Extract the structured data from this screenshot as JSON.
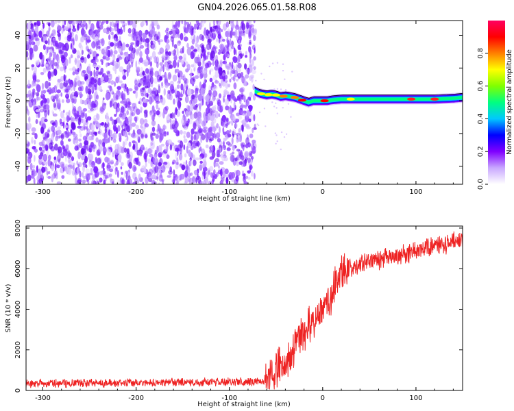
{
  "title": "GN04.2026.065.01.58.R08",
  "chart_data": [
    {
      "type": "heatmap",
      "name": "spectrogram",
      "xlabel": "Height of straight line (km)",
      "ylabel": "Frequency (Hz)",
      "xlim": [
        -318,
        150
      ],
      "ylim": [
        -51,
        49
      ],
      "xticks": [
        -300,
        -200,
        -100,
        0,
        100
      ],
      "yticks": [
        -40,
        -20,
        0,
        20,
        40
      ],
      "noise_region_x": [
        -318,
        -72
      ],
      "signal_start_x": -73,
      "signal_line_x": [
        -73,
        -68,
        -60,
        -55,
        -50,
        -45,
        -40,
        -35,
        -30,
        -25,
        -20,
        -15,
        -10,
        -5,
        0,
        5,
        10,
        20,
        40,
        60,
        80,
        100,
        120,
        140,
        150
      ],
      "signal_line_y": [
        6,
        4.5,
        3.5,
        4,
        3.5,
        2.5,
        3,
        2.5,
        2,
        1,
        0,
        -1,
        0,
        0,
        0,
        0,
        0.5,
        1,
        1,
        1,
        1,
        1,
        1,
        1.5,
        2
      ],
      "colorbar": {
        "label": "Normalized spectral amplitude",
        "range": [
          0,
          1
        ],
        "ticks": [
          0.0,
          0.2,
          0.4,
          0.6,
          0.8
        ],
        "tick_labels": [
          "0.0",
          "0.2",
          "0.4",
          "0.6",
          "0.8"
        ],
        "colors": [
          "#ffffff",
          "#c9a8ff",
          "#8000ff",
          "#0000ff",
          "#00c8ff",
          "#00ff80",
          "#80ff00",
          "#ffff00",
          "#ff8000",
          "#ff0000",
          "#ff0060"
        ]
      }
    },
    {
      "type": "line",
      "name": "snr",
      "xlabel": "Height of straight line (km)",
      "ylabel": "SNR (10 * v/v)",
      "xlim": [
        -318,
        150
      ],
      "ylim": [
        0,
        8100
      ],
      "xticks": [
        -300,
        -200,
        -100,
        0,
        100
      ],
      "yticks": [
        0,
        2000,
        4000,
        6000,
        8000
      ],
      "color": "#ee2222",
      "series": [
        {
          "name": "SNR",
          "x": [
            -318,
            -250,
            -200,
            -150,
            -100,
            -65,
            -55,
            -50,
            -45,
            -40,
            -35,
            -30,
            -25,
            -20,
            -15,
            -10,
            -5,
            0,
            5,
            10,
            15,
            20,
            25,
            30,
            40,
            60,
            80,
            100,
            120,
            140,
            150
          ],
          "y": [
            330,
            360,
            380,
            400,
            420,
            430,
            600,
            1100,
            1500,
            1200,
            1700,
            2200,
            2600,
            2900,
            3200,
            3400,
            3700,
            3900,
            4300,
            4800,
            5300,
            5700,
            5900,
            6050,
            6300,
            6450,
            6600,
            6900,
            7100,
            7300,
            7400
          ]
        }
      ]
    }
  ]
}
